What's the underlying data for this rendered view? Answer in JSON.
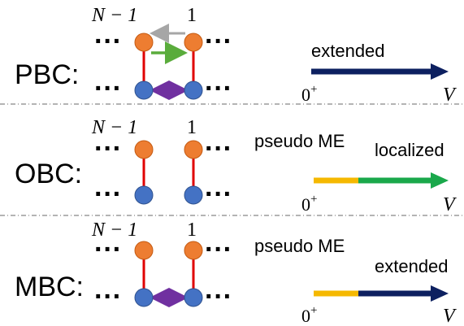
{
  "panels": [
    {
      "label": "PBC:",
      "site_left": "N − 1",
      "site_right": "1",
      "caption": "",
      "phase_label": "extended",
      "axis_start": "0",
      "axis_start_sup": "+",
      "axis_end": "V",
      "arrow_segments": [
        "#0d2060"
      ],
      "bonds": [
        "top-hop-left",
        "middle-hop-right",
        "bottom-hop-both"
      ]
    },
    {
      "label": "OBC:",
      "site_left": "N − 1",
      "site_right": "1",
      "caption": "pseudo ME",
      "phase_label": "localized",
      "axis_start": "0",
      "axis_start_sup": "+",
      "axis_end": "V",
      "arrow_segments": [
        "#f5b800",
        "#1aa84b"
      ],
      "bonds": []
    },
    {
      "label": "MBC:",
      "site_left": "N − 1",
      "site_right": "1",
      "caption": "pseudo ME",
      "phase_label": "extended",
      "axis_start": "0",
      "axis_start_sup": "+",
      "axis_end": "V",
      "arrow_segments": [
        "#f5b800",
        "#0d2060"
      ],
      "bonds": [
        "bottom-hop-both"
      ]
    }
  ],
  "ellipsis": "···",
  "colors": {
    "site_top": "#ed7d31",
    "site_bottom": "#4472c4",
    "rung": "#e00000",
    "hop_gray": "#a6a6a6",
    "hop_green": "#5aac3c",
    "hop_purple": "#7030a0",
    "navy": "#0d2060",
    "yellow": "#f5b800",
    "green": "#1aa84b",
    "divider": "#888888"
  }
}
